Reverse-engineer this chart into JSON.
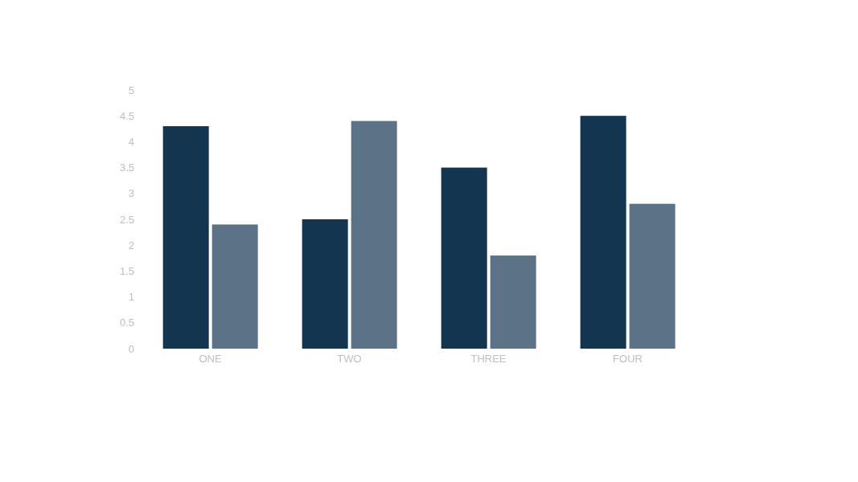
{
  "chart_data": {
    "type": "bar",
    "categories": [
      "ONE",
      "TWO",
      "THREE",
      "FOUR"
    ],
    "series": [
      {
        "color": "#13354f",
        "values": [
          4.3,
          2.5,
          3.5,
          4.5
        ]
      },
      {
        "color": "#5c7387",
        "values": [
          2.4,
          4.4,
          1.8,
          2.8
        ]
      }
    ],
    "ylim": [
      0,
      5
    ],
    "yticks": [
      0,
      0.5,
      1,
      1.5,
      2,
      2.5,
      3,
      3.5,
      4,
      4.5,
      5
    ],
    "grid": false,
    "legend": false
  }
}
